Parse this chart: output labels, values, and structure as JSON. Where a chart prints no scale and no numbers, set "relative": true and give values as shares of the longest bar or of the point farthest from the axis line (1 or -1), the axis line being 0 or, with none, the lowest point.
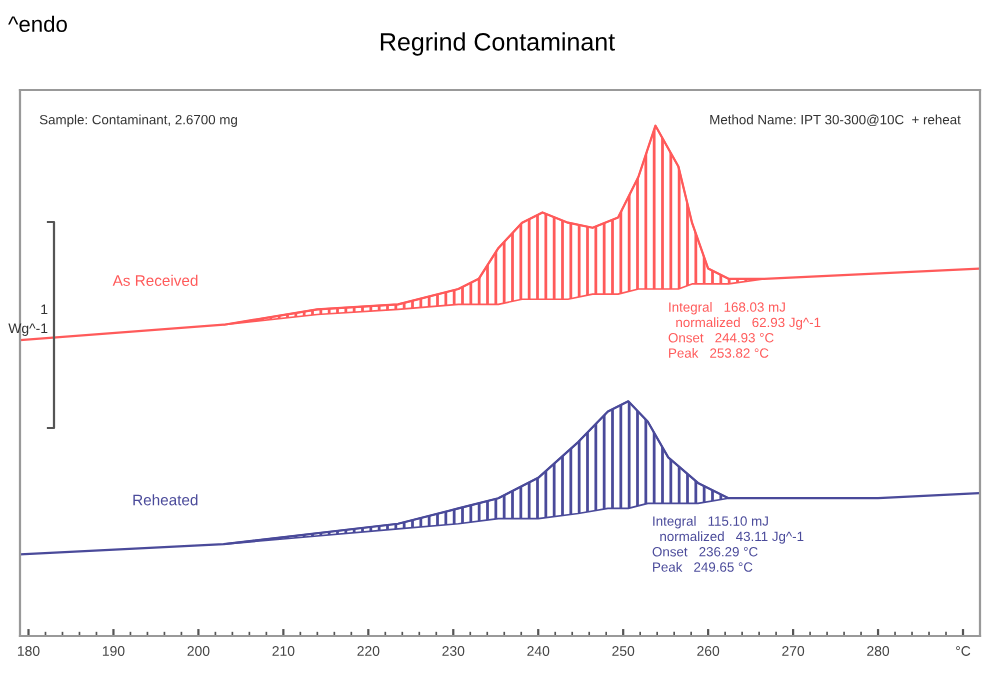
{
  "chart_data": {
    "type": "line",
    "title": "Regrind Contaminant",
    "relative": true,
    "xlim": [
      179,
      292
    ],
    "xticks": [
      180,
      190,
      200,
      210,
      220,
      230,
      240,
      250,
      260,
      270,
      280,
      {
        "value": 290,
        "label": "°C"
      }
    ],
    "grid": false,
    "legend": false,
    "marker": "none",
    "line_style": "solid",
    "series": [
      {
        "name": "As Received",
        "color": "#ff5a5a",
        "x": [
          179,
          203,
          214,
          223.5,
          230.6,
          233,
          235.3,
          238.1,
          240.5,
          243.5,
          246.4,
          249.4,
          251.8,
          253.8,
          256.5,
          258.1,
          260,
          262.4,
          266.6,
          291.8
        ],
        "values": [
          0.58,
          0.61,
          0.64,
          0.65,
          0.68,
          0.7,
          0.76,
          0.81,
          0.83,
          0.81,
          0.8,
          0.82,
          0.9,
          1.0,
          0.92,
          0.81,
          0.72,
          0.7,
          0.7,
          0.72
        ],
        "lower": [
          null,
          0.61,
          0.63,
          0.64,
          0.65,
          0.65,
          0.65,
          0.66,
          0.66,
          0.66,
          0.67,
          0.67,
          0.68,
          0.68,
          0.68,
          0.69,
          0.69,
          0.69,
          0.7,
          null
        ],
        "upper": [
          null,
          0.61,
          0.64,
          0.65,
          0.68,
          0.7,
          0.76,
          0.81,
          0.83,
          0.81,
          0.8,
          0.82,
          0.9,
          1.0,
          0.92,
          0.81,
          0.72,
          0.7,
          0.7,
          null
        ]
      },
      {
        "name": "Reheated",
        "color": "#4a4a9a",
        "x": [
          179,
          203,
          223.5,
          230.6,
          235.3,
          240,
          244.7,
          248.2,
          250.6,
          252.9,
          255.3,
          258.8,
          262.4,
          266.6,
          280,
          291.8
        ],
        "values": [
          0.16,
          0.18,
          0.22,
          0.25,
          0.27,
          0.31,
          0.38,
          0.44,
          0.46,
          0.42,
          0.35,
          0.3,
          0.27,
          0.27,
          0.27,
          0.28
        ],
        "lower": [
          null,
          0.18,
          0.21,
          0.22,
          0.23,
          0.23,
          0.24,
          0.25,
          0.25,
          0.26,
          0.26,
          0.26,
          0.27,
          0.27,
          null,
          null
        ],
        "upper": [
          null,
          0.18,
          0.22,
          0.25,
          0.27,
          0.31,
          0.38,
          0.44,
          0.46,
          0.42,
          0.35,
          0.3,
          0.27,
          0.27,
          null,
          null
        ]
      }
    ],
    "annotations": [
      "Integral   168.03 mJ\n  normalized   62.93 Jg^-1\nOnset   244.93 °C\nPeak   253.82 °C",
      "Integral   115.10 mJ\n  normalized   43.11 Jg^-1\nOnset   236.29 °C\nPeak   249.65 °C",
      "^endo",
      "Sample: Contaminant, 2.6700 mg",
      "Method Name: IPT 30-300@10C  + reheat",
      "1\nWg^-1"
    ]
  }
}
